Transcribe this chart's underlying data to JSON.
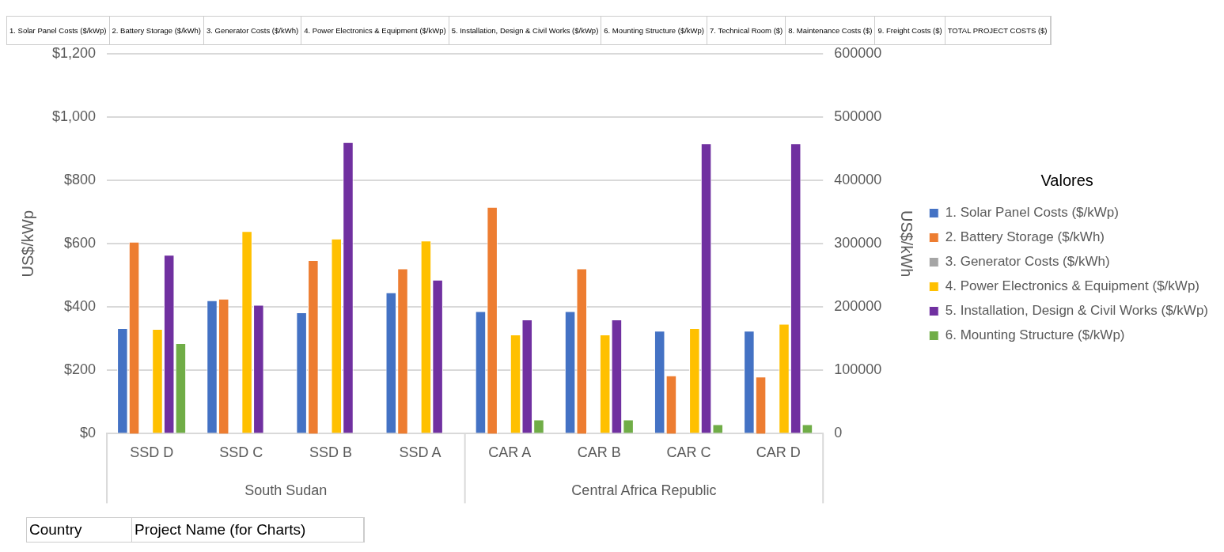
{
  "chart_data": {
    "type": "bar",
    "xlabel": null,
    "ylabel": "US$/kWp",
    "y2label": "US$/kWh",
    "legend_title": "Valores",
    "legend": "right",
    "grid": "y",
    "categories": [
      "SSD D",
      "SSD C",
      "SSD B",
      "SSD A",
      "CAR A",
      "CAR B",
      "CAR C",
      "CAR D"
    ],
    "series": [
      {
        "name": "1. Solar Panel Costs ($/kWp)",
        "color": "#4472c4",
        "values": [
          333,
          421,
          383,
          446,
          387,
          387,
          325,
          325
        ]
      },
      {
        "name": "2. Battery Storage ($/kWh)",
        "color": "#ed7d31",
        "axis": "y2",
        "values": [
          303000,
          213000,
          274000,
          261000,
          358000,
          261000,
          92000,
          90000
        ]
      },
      {
        "name": "3. Generator Costs ($/kWh)",
        "color": "#a5a5a5",
        "axis": "y2",
        "values": [
          null,
          null,
          null,
          null,
          null,
          null,
          null,
          null
        ]
      },
      {
        "name": "4. Power Electronics & Equipment ($/kWp)",
        "color": "#ffc000",
        "values": [
          331,
          640,
          616,
          610,
          313,
          313,
          333,
          347
        ]
      },
      {
        "name": "5. Installation, Design & Civil Works ($/kWp)",
        "color": "#7030a0",
        "values": [
          565,
          407,
          921,
          486,
          361,
          361,
          917,
          917
        ]
      },
      {
        "name": "6. Mounting Structure ($/kWp)",
        "color": "#70ad47",
        "values": [
          286,
          null,
          null,
          null,
          45,
          45,
          30,
          30
        ]
      }
    ],
    "ylim": [
      0,
      1200
    ],
    "yticks": [
      {
        "value": 0,
        "label": "$0"
      },
      {
        "value": 200,
        "label": "$200"
      },
      {
        "value": 400,
        "label": "$400"
      },
      {
        "value": 600,
        "label": "$600"
      },
      {
        "value": 800,
        "label": "$800"
      },
      {
        "value": 1000,
        "label": "$1,000"
      },
      {
        "value": 1200,
        "label": "$1,200"
      }
    ],
    "y2lim": [
      0,
      600000
    ],
    "y2ticks": [
      0,
      100000,
      200000,
      300000,
      400000,
      500000,
      600000
    ],
    "annotations": [
      "1. Solar Panel Costs ($/kWp)",
      "2. Battery Storage ($/kWh)",
      "3. Generator Costs ($/kWh)",
      "4. Power Electronics & Equipment ($/kWp)",
      "5. Installation, Design & Civil Works ($/kWp)",
      "6. Mounting Structure ($/kWp)",
      "7. Technical Room ($)",
      "8. Maintenance Costs ($)",
      "9. Freight Costs ($)",
      "TOTAL PROJECT COSTS ($)",
      "Country",
      "Project Name (for Charts)",
      "South Sudan",
      "Central Africa Republic"
    ]
  }
}
